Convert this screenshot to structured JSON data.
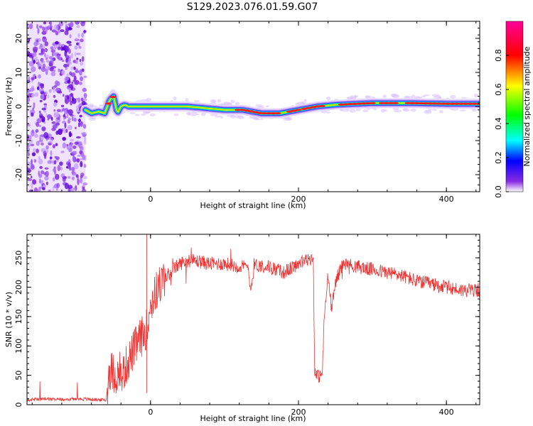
{
  "title": "S129.2023.076.01.59.G07",
  "chart_data": [
    {
      "type": "heatmap",
      "xlabel": "Height of straight line (km)",
      "ylabel": "Frequency (Hz)",
      "xlim": [
        -167,
        445
      ],
      "ylim": [
        -25,
        25
      ],
      "xticks": [
        0,
        200,
        400
      ],
      "yticks": [
        -20,
        -10,
        0,
        10,
        20
      ],
      "colorbar": {
        "label": "Normalized spectral amplitude",
        "range": [
          0,
          1
        ],
        "ticks": [
          0.0,
          0.2,
          0.4,
          0.6,
          0.8
        ],
        "colors": [
          "#ffffff",
          "#7a00ff",
          "#0000ff",
          "#00ffff",
          "#00ff00",
          "#ffff00",
          "#ff0000",
          "#ff00aa"
        ]
      },
      "noise_region_x": [
        -167,
        -88
      ],
      "ridge": {
        "x": [
          -88,
          -80,
          -70,
          -62,
          -55,
          -50,
          -45,
          -40,
          -35,
          -30,
          0,
          50,
          100,
          125,
          150,
          175,
          200,
          225,
          250,
          300,
          350,
          400,
          445
        ],
        "y": [
          -1,
          -2,
          -1.5,
          -2,
          2,
          3,
          -2,
          0,
          0.5,
          0,
          0,
          0,
          -1,
          -1,
          -2,
          -2,
          -1,
          0,
          0.5,
          1,
          1,
          0.8,
          0.8
        ]
      }
    },
    {
      "type": "line",
      "xlabel": "Height of straight line (km)",
      "ylabel": "SNR (10 * v/v)",
      "xlim": [
        -167,
        445
      ],
      "ylim": [
        0,
        290
      ],
      "xticks": [
        0,
        200,
        400
      ],
      "yticks": [
        0,
        50,
        100,
        150,
        200,
        250
      ],
      "color": "#ee3333",
      "x": [
        -167,
        -140,
        -120,
        -100,
        -80,
        -60,
        -56,
        -50,
        -40,
        -30,
        -20,
        -10,
        -5,
        0,
        10,
        20,
        30,
        40,
        50,
        60,
        80,
        100,
        120,
        132,
        135,
        137,
        140,
        160,
        180,
        200,
        215,
        220,
        222,
        225,
        232,
        235,
        240,
        245,
        250,
        260,
        280,
        300,
        320,
        340,
        360,
        380,
        400,
        420,
        445
      ],
      "y": [
        8,
        10,
        9,
        10,
        9,
        8,
        60,
        55,
        45,
        75,
        100,
        120,
        130,
        170,
        200,
        215,
        230,
        240,
        245,
        245,
        240,
        240,
        235,
        235,
        200,
        205,
        238,
        235,
        225,
        240,
        248,
        250,
        60,
        48,
        50,
        150,
        220,
        160,
        210,
        240,
        235,
        230,
        225,
        220,
        210,
        205,
        200,
        195,
        195
      ]
    }
  ]
}
